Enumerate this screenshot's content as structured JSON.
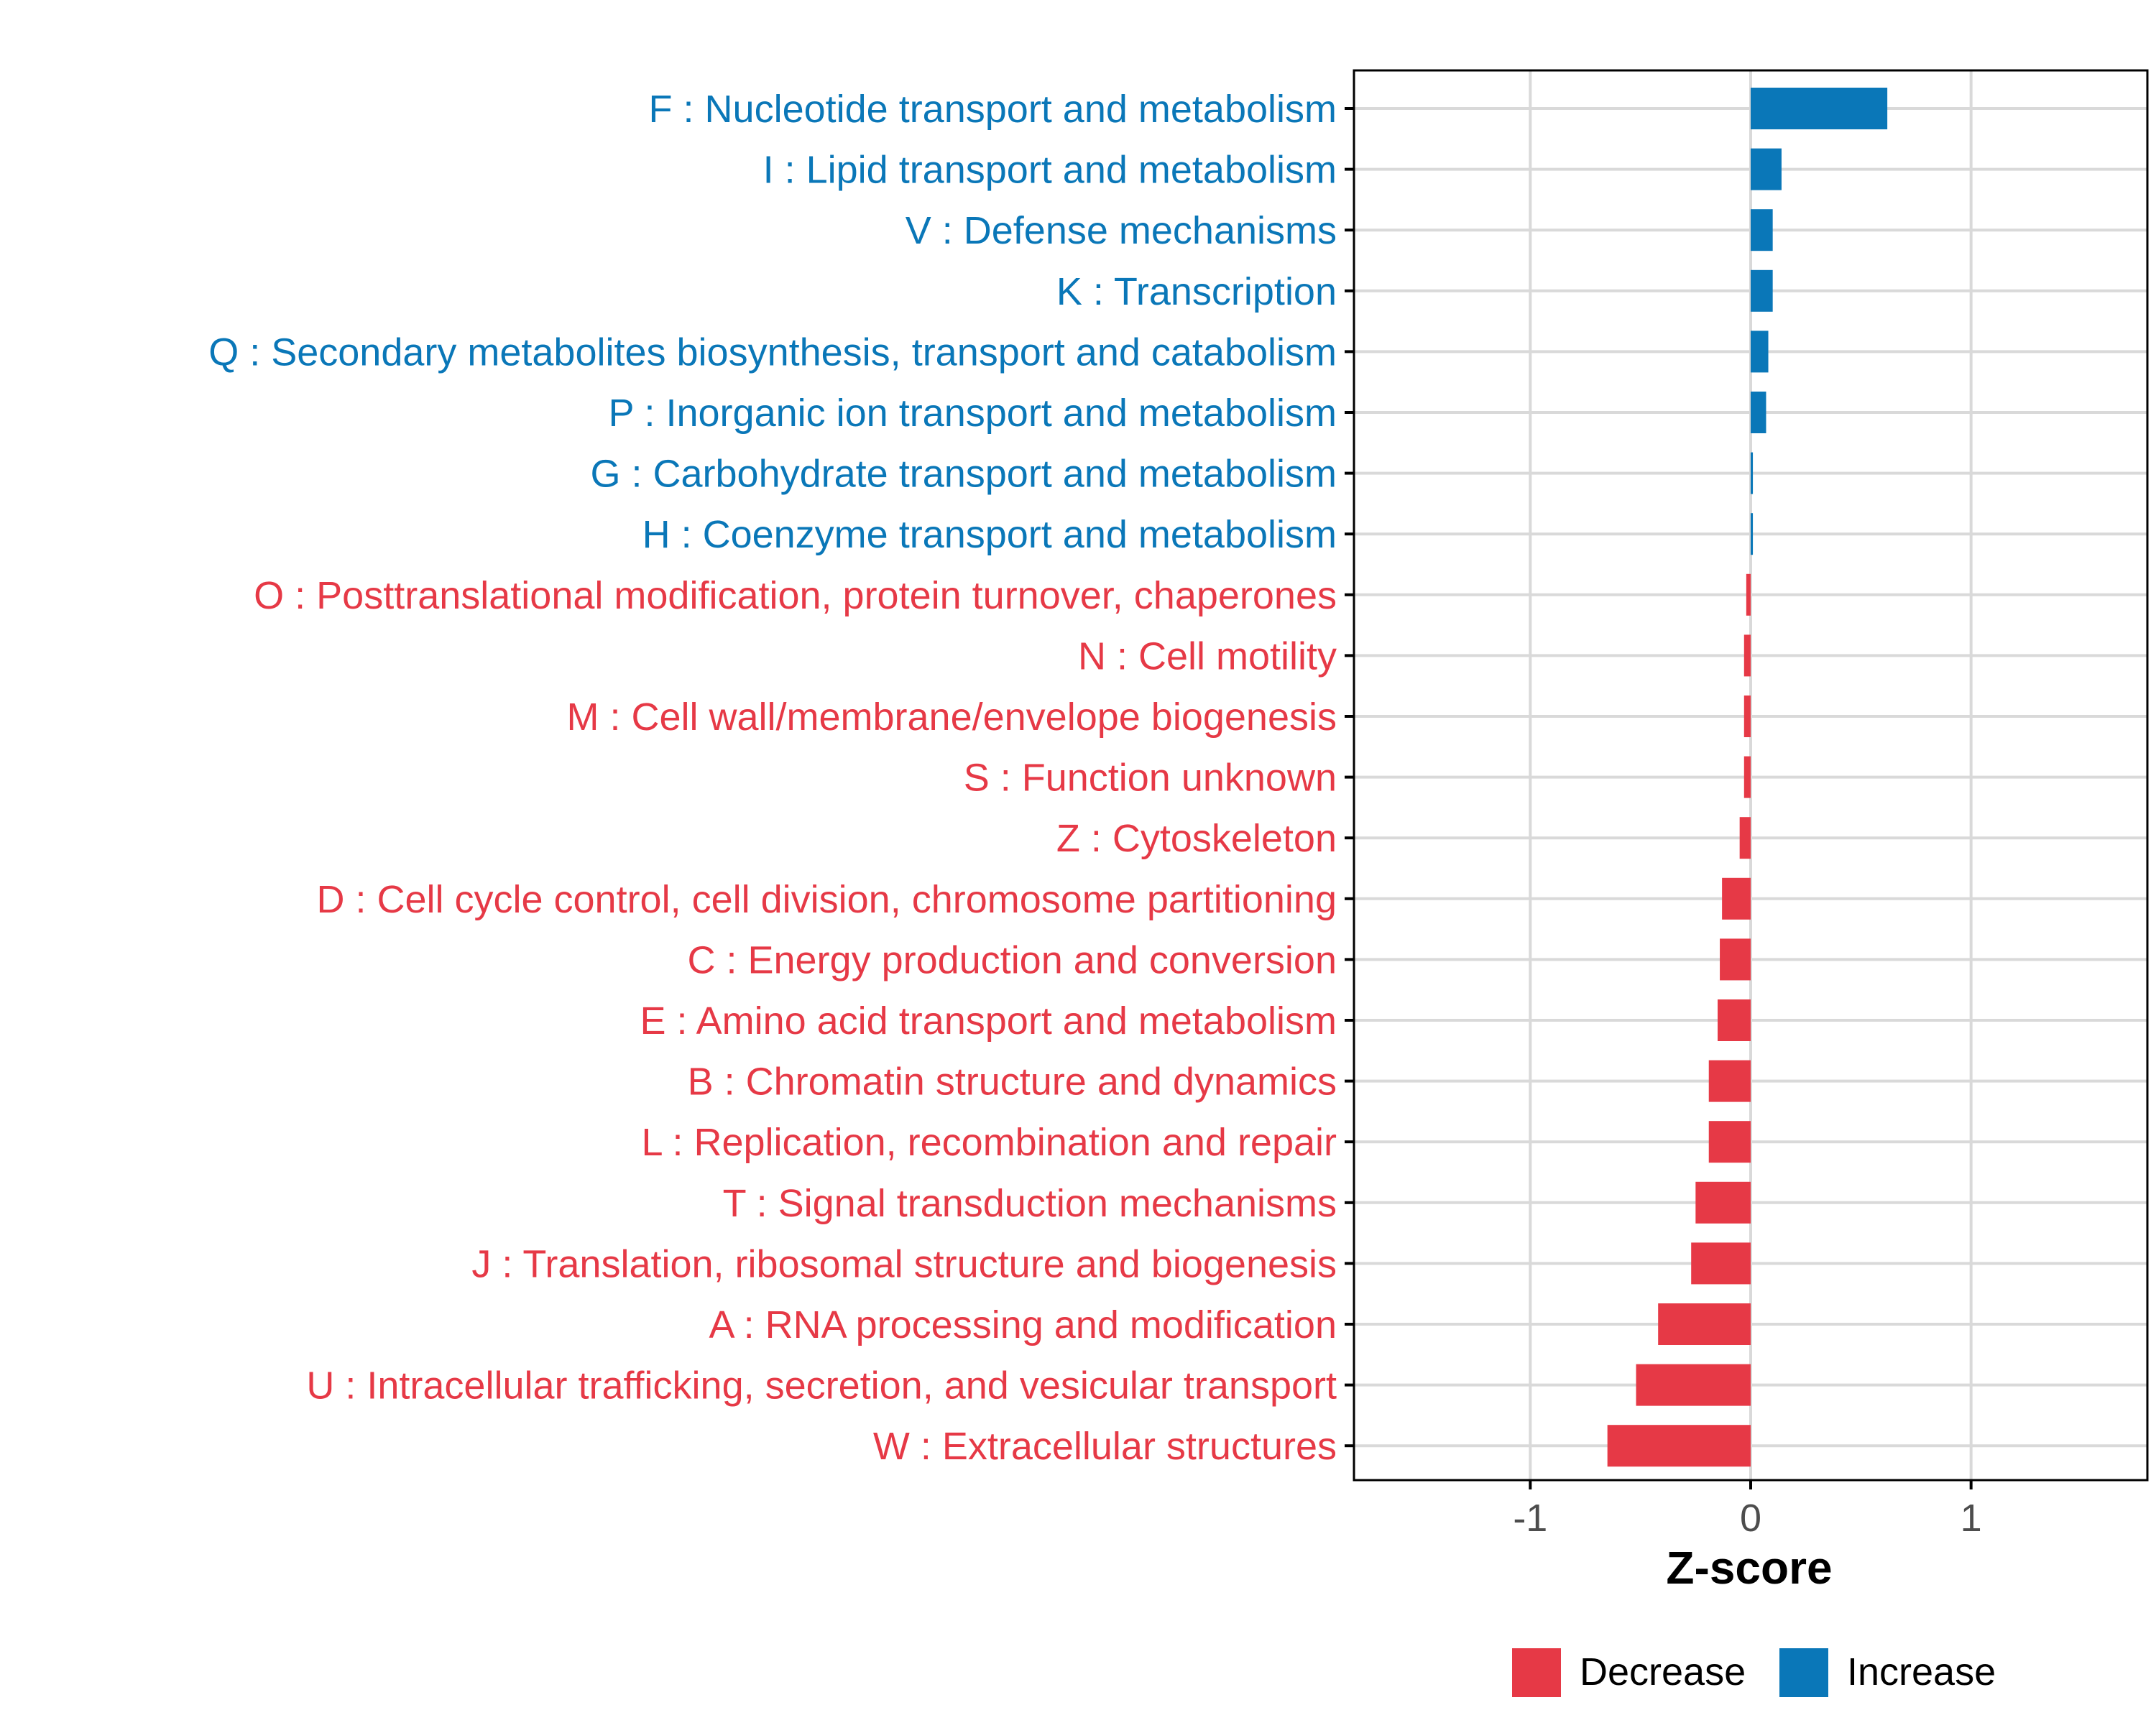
{
  "chart_data": {
    "type": "bar",
    "orientation": "horizontal",
    "xlabel": "Z-score",
    "xlim": [
      -1.8,
      1.8
    ],
    "xticks": [
      -1,
      0,
      1
    ],
    "xtick_labels": [
      "-1",
      "0",
      "1"
    ],
    "grid": true,
    "legend_position": "bottom",
    "colors": {
      "Decrease": "#E63946",
      "Increase": "#0A77B8",
      "grid": "#D9D9D9",
      "axis": "#000000"
    },
    "legend": [
      {
        "label": "Decrease",
        "color": "#E63946"
      },
      {
        "label": "Increase",
        "color": "#0A77B8"
      }
    ],
    "categories": [
      "F : Nucleotide transport and metabolism",
      "I : Lipid transport and metabolism",
      "V : Defense mechanisms",
      "K : Transcription",
      "Q : Secondary metabolites biosynthesis, transport and catabolism",
      "P : Inorganic ion transport and metabolism",
      "G : Carbohydrate transport and metabolism",
      "H : Coenzyme transport and metabolism",
      "O : Posttranslational modification, protein turnover, chaperones",
      "N : Cell motility",
      "M : Cell wall/membrane/envelope biogenesis",
      "S : Function unknown",
      "Z : Cytoskeleton",
      "D : Cell cycle control, cell division, chromosome partitioning",
      "C : Energy production and conversion",
      "E : Amino acid transport and metabolism",
      "B : Chromatin structure and dynamics",
      "L : Replication, recombination and repair",
      "T : Signal transduction mechanisms",
      "J : Translation, ribosomal structure and biogenesis",
      "A : RNA processing and modification",
      "U : Intracellular trafficking, secretion, and vesicular transport",
      "W : Extracellular structures"
    ],
    "values": [
      0.62,
      0.14,
      0.1,
      0.1,
      0.08,
      0.07,
      0.01,
      0.01,
      -0.02,
      -0.03,
      -0.03,
      -0.03,
      -0.05,
      -0.13,
      -0.14,
      -0.15,
      -0.19,
      -0.19,
      -0.25,
      -0.27,
      -0.42,
      -0.52,
      -0.65
    ],
    "groups": [
      "Increase",
      "Increase",
      "Increase",
      "Increase",
      "Increase",
      "Increase",
      "Increase",
      "Increase",
      "Decrease",
      "Decrease",
      "Decrease",
      "Decrease",
      "Decrease",
      "Decrease",
      "Decrease",
      "Decrease",
      "Decrease",
      "Decrease",
      "Decrease",
      "Decrease",
      "Decrease",
      "Decrease",
      "Decrease"
    ]
  }
}
